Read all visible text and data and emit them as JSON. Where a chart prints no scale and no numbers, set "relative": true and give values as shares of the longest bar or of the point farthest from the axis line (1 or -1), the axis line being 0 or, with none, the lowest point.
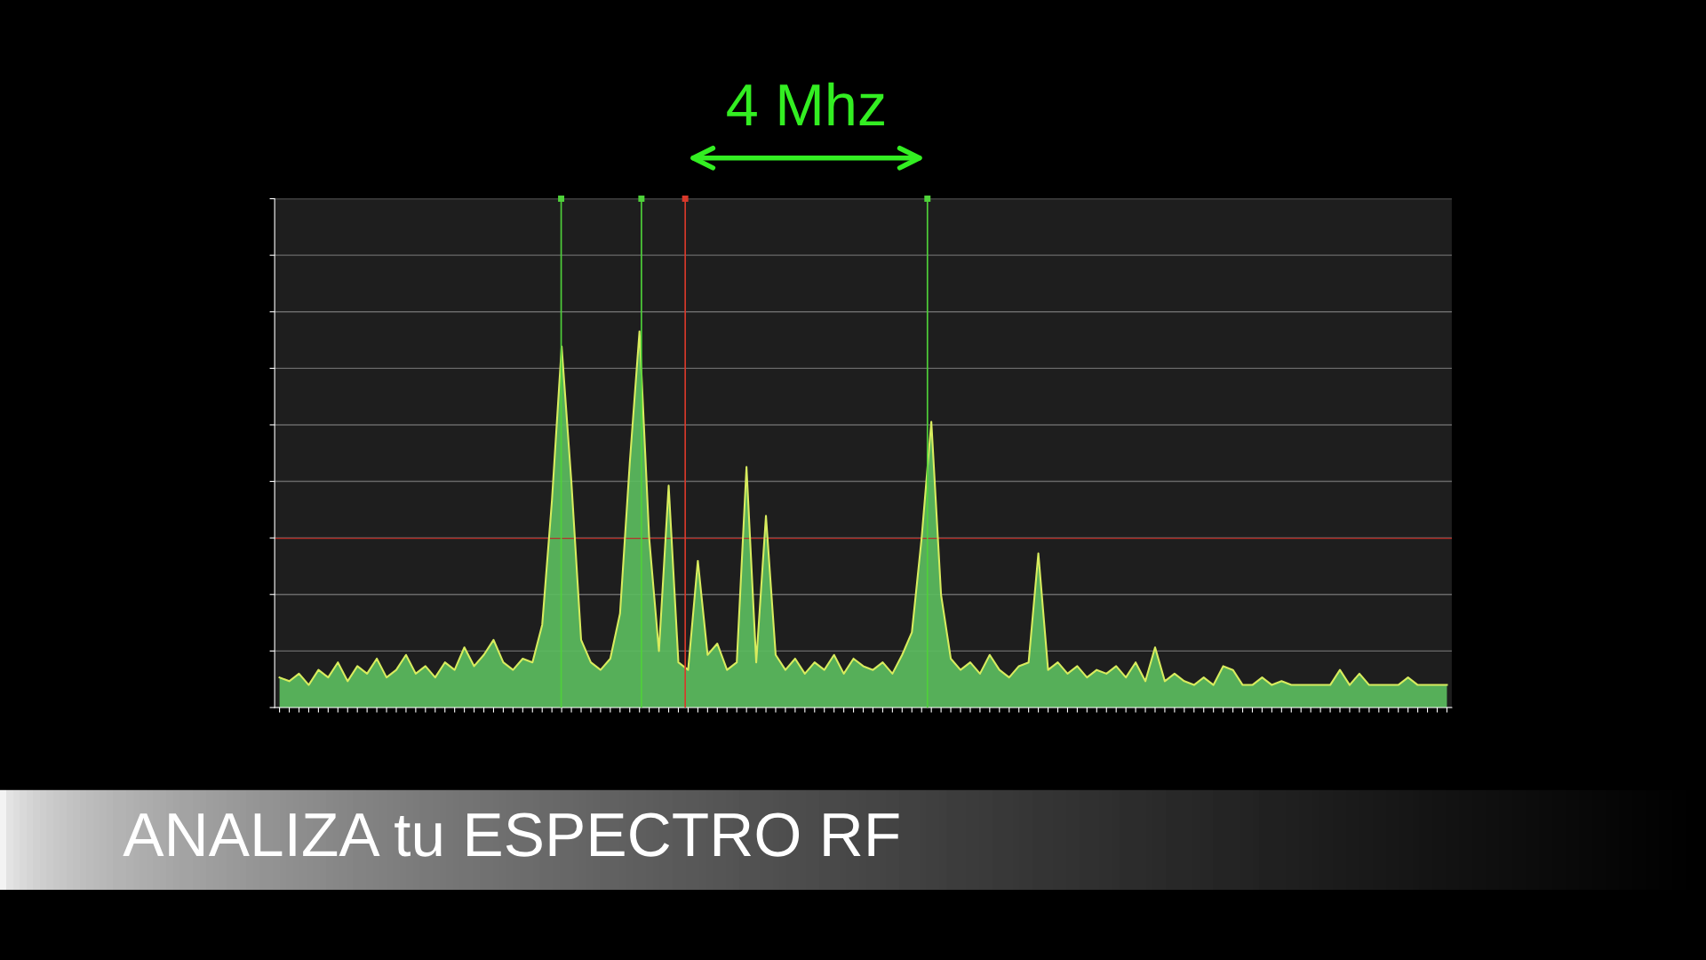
{
  "chart_data": {
    "type": "area",
    "relative": true,
    "title": "ANALIZA tu ESPECTRO RF",
    "annotations": [
      "4 Mhz"
    ],
    "categories": [
      null,
      null,
      null,
      null,
      null,
      null,
      null,
      null,
      null,
      null,
      null,
      null,
      null,
      null,
      null,
      null,
      null,
      null,
      null,
      null,
      null,
      null,
      null,
      null,
      null,
      null,
      null,
      null,
      null,
      null,
      null,
      null,
      null,
      null,
      null,
      null,
      null,
      null,
      null,
      null,
      null,
      null,
      null,
      null,
      null,
      null,
      null,
      null,
      null,
      null,
      null,
      null,
      null,
      null,
      null,
      null,
      null,
      null,
      null,
      null,
      null,
      null,
      null,
      null,
      null,
      null,
      null,
      null,
      null,
      null,
      null,
      null,
      null,
      null,
      null,
      null,
      null,
      null,
      null,
      null,
      null,
      null,
      null,
      null,
      null,
      null,
      null,
      null,
      null,
      null,
      null,
      null,
      null,
      null,
      null,
      null,
      null,
      null,
      null,
      null,
      null,
      null,
      null,
      null,
      null,
      null,
      null,
      null,
      null,
      null,
      null,
      null,
      null,
      null,
      null,
      null,
      null,
      null,
      null,
      null,
      null
    ],
    "series": [
      {
        "color": "#5cbf5f",
        "values": [
          0.08,
          0.07,
          0.09,
          0.06,
          0.1,
          0.08,
          0.12,
          0.07,
          0.11,
          0.09,
          0.13,
          0.08,
          0.1,
          0.14,
          0.09,
          0.11,
          0.08,
          0.12,
          0.1,
          0.16,
          0.11,
          0.14,
          0.18,
          0.12,
          0.1,
          0.13,
          0.12,
          0.22,
          0.55,
          0.96,
          0.6,
          0.18,
          0.12,
          0.1,
          0.13,
          0.25,
          0.65,
          1.0,
          0.45,
          0.15,
          0.59,
          0.12,
          0.1,
          0.39,
          0.14,
          0.17,
          0.1,
          0.12,
          0.64,
          0.12,
          0.51,
          0.14,
          0.1,
          0.13,
          0.09,
          0.12,
          0.1,
          0.14,
          0.09,
          0.13,
          0.11,
          0.1,
          0.12,
          0.09,
          0.14,
          0.2,
          0.45,
          0.76,
          0.3,
          0.13,
          0.1,
          0.12,
          0.09,
          0.14,
          0.1,
          0.08,
          0.11,
          0.12,
          0.41,
          0.1,
          0.12,
          0.09,
          0.11,
          0.08,
          0.1,
          0.09,
          0.11,
          0.08,
          0.12,
          0.07,
          0.16,
          0.07,
          0.09,
          0.07,
          0.06,
          0.08,
          0.06,
          0.11,
          0.1,
          0.06,
          0.06,
          0.08,
          0.06,
          0.07,
          0.06,
          0.06,
          0.06,
          0.06,
          0.06,
          0.1,
          0.06,
          0.09,
          0.06,
          0.06,
          0.06,
          0.06,
          0.08,
          0.06,
          0.06,
          0.06,
          0.06
        ]
      }
    ],
    "ref_lines": [
      {
        "axis": "y",
        "value": 0.45,
        "color": "#b8302a"
      }
    ],
    "grid": "y"
  }
}
